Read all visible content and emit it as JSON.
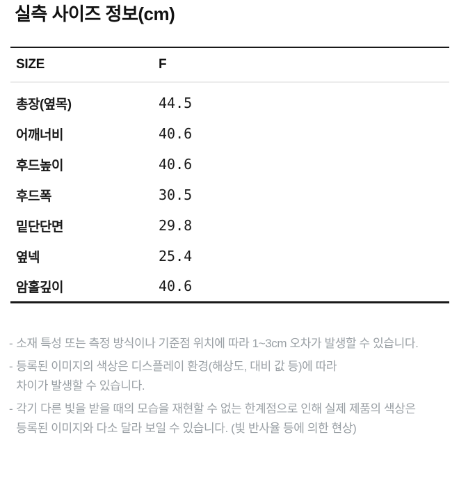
{
  "page": {
    "title": "실측 사이즈 정보(cm)"
  },
  "table": {
    "columns": [
      "SIZE",
      "F"
    ],
    "rows": [
      {
        "label": "총장(옆목)",
        "value": "44.5"
      },
      {
        "label": "어깨너비",
        "value": "40.6"
      },
      {
        "label": "후드높이",
        "value": "40.6"
      },
      {
        "label": "후드폭",
        "value": "30.5"
      },
      {
        "label": "밑단단면",
        "value": "29.8"
      },
      {
        "label": "옆넥",
        "value": "25.4"
      },
      {
        "label": "암홀깊이",
        "value": "40.6"
      }
    ]
  },
  "notes": [
    {
      "marker": "-",
      "lines": [
        "소재 특성 또는 측정 방식이나 기준점 위치에 따라 1~3cm 오차가 발생할 수 있습니다."
      ]
    },
    {
      "marker": "-",
      "lines": [
        "등록된 이미지의 색상은 디스플레이 환경(해상도, 대비 값 등)에 따라",
        "차이가 발생할 수 있습니다."
      ]
    },
    {
      "marker": "-",
      "lines": [
        "각기 다른 빛을 받을 때의 모습을 재현할 수 없는 한계점으로 인해 실제 제품의 색상은",
        "등록된 이미지와 다소 달라 보일 수 있습니다. (빛 반사율 등에 의한 현상)"
      ]
    }
  ],
  "colors": {
    "text": "#1a1a1a",
    "note_text": "#9aa0a5",
    "divider_strong": "#191919",
    "divider_light": "#ececec"
  }
}
